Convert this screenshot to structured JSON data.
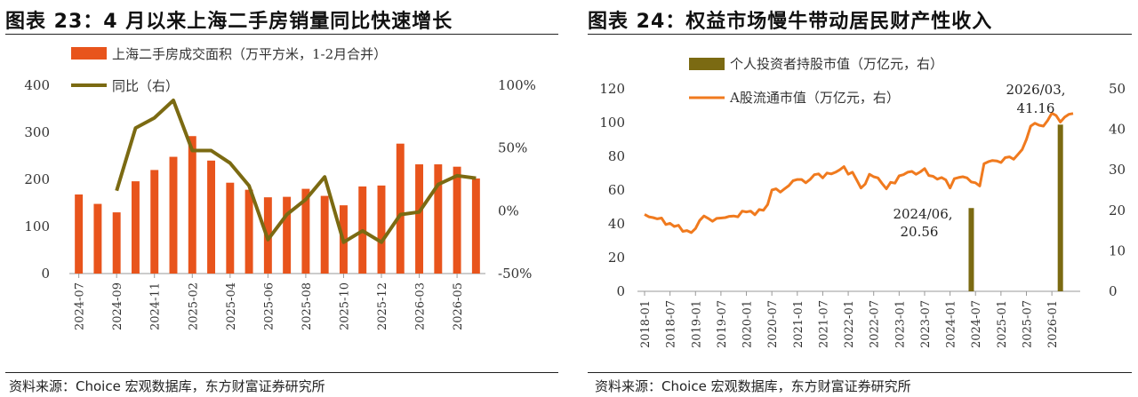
{
  "chart_data": [
    {
      "type": "bar",
      "title": "图表 23：4 月以来上海二手房销量同比快速增长",
      "source": "资料来源：Choice 宏观数据库，东方财富证券研究所",
      "x_tick_labels": [
        "2024-07",
        "2024-09",
        "2024-11",
        "2025-02",
        "2025-04",
        "2025-06",
        "2025-08",
        "2025-10",
        "2025-12",
        "2026-03",
        "2026-05"
      ],
      "categories": [
        "2024-07",
        "2024-08",
        "2024-09",
        "2024-10",
        "2024-11",
        "2024-12",
        "2025-02",
        "2025-03",
        "2025-04",
        "2025-05",
        "2025-06",
        "2025-07",
        "2025-08",
        "2025-09",
        "2025-10",
        "2025-11",
        "2025-12",
        "2026-01",
        "2026-03",
        "2026-04",
        "2026-05",
        "2026-06"
      ],
      "y_left": {
        "ylim": [
          0,
          400
        ],
        "ticks": [
          "0",
          "100",
          "200",
          "300",
          "400"
        ]
      },
      "y_right": {
        "ylim": [
          -50,
          100
        ],
        "ticks": [
          "-50%",
          "0%",
          "50%",
          "100%"
        ]
      },
      "legend_placement": "top-left",
      "series": [
        {
          "name": "上海二手房成交面积（万平方米，1-2月合并）",
          "type": "bar",
          "axis": "left",
          "color": "#e8541c",
          "values": [
            168,
            148,
            130,
            196,
            220,
            248,
            292,
            240,
            193,
            178,
            162,
            163,
            180,
            165,
            145,
            185,
            187,
            276,
            232,
            232,
            227,
            202
          ]
        },
        {
          "name": "同比（右）",
          "type": "line",
          "axis": "right",
          "color": "#7b6a12",
          "values": [
            null,
            null,
            16,
            66,
            74,
            88,
            48,
            48,
            38,
            20,
            -23,
            -3,
            9,
            27,
            -25,
            -16,
            -25,
            -3,
            -1,
            21,
            28,
            26
          ]
        }
      ]
    },
    {
      "type": "bar",
      "title": "图表 24：权益市场慢牛带动居民财产性收入",
      "source": "资料来源：Choice 宏观数据库，东方财富证券研究所",
      "x_tick_labels": [
        "2018-01",
        "2018-07",
        "2019-01",
        "2019-07",
        "2020-01",
        "2020-07",
        "2021-01",
        "2021-07",
        "2022-01",
        "2022-07",
        "2023-01",
        "2023-07",
        "2024-01",
        "2024-07",
        "2025-01",
        "2025-07",
        "2026-01"
      ],
      "y_left": {
        "ylim": [
          0,
          120
        ],
        "ticks": [
          "0",
          "20",
          "40",
          "60",
          "80",
          "100",
          "120"
        ]
      },
      "y_right": {
        "ylim": [
          0,
          50
        ],
        "ticks": [
          "0",
          "10",
          "20",
          "30",
          "40",
          "50"
        ]
      },
      "legend_placement": "top-center",
      "series": [
        {
          "name": "个人投资者持股市值（万亿元，右）",
          "type": "bar",
          "axis": "right",
          "color": "#7b6a12",
          "points": [
            {
              "x": "2024-06",
              "y": 20.56
            },
            {
              "x": "2026-03",
              "y": 41.16
            }
          ]
        },
        {
          "name": "A股流通市值（万亿元，右）",
          "type": "line",
          "axis": "right",
          "color": "#f07a1e",
          "points": [
            {
              "x": "2018-01",
              "y": 19.0
            },
            {
              "x": "2018-02",
              "y": 18.4
            },
            {
              "x": "2018-03",
              "y": 18.2
            },
            {
              "x": "2018-04",
              "y": 17.9
            },
            {
              "x": "2018-05",
              "y": 18.1
            },
            {
              "x": "2018-06",
              "y": 16.5
            },
            {
              "x": "2018-07",
              "y": 16.8
            },
            {
              "x": "2018-08",
              "y": 16.0
            },
            {
              "x": "2018-09",
              "y": 16.3
            },
            {
              "x": "2018-10",
              "y": 14.8
            },
            {
              "x": "2018-11",
              "y": 15.0
            },
            {
              "x": "2018-12",
              "y": 14.5
            },
            {
              "x": "2019-01",
              "y": 15.5
            },
            {
              "x": "2019-02",
              "y": 17.5
            },
            {
              "x": "2019-03",
              "y": 18.6
            },
            {
              "x": "2019-04",
              "y": 18.0
            },
            {
              "x": "2019-05",
              "y": 17.3
            },
            {
              "x": "2019-06",
              "y": 18.0
            },
            {
              "x": "2019-07",
              "y": 18.1
            },
            {
              "x": "2019-08",
              "y": 18.2
            },
            {
              "x": "2019-09",
              "y": 18.5
            },
            {
              "x": "2019-10",
              "y": 18.6
            },
            {
              "x": "2019-11",
              "y": 18.4
            },
            {
              "x": "2019-12",
              "y": 19.8
            },
            {
              "x": "2020-01",
              "y": 19.6
            },
            {
              "x": "2020-02",
              "y": 19.8
            },
            {
              "x": "2020-03",
              "y": 18.9
            },
            {
              "x": "2020-04",
              "y": 20.2
            },
            {
              "x": "2020-05",
              "y": 20.0
            },
            {
              "x": "2020-06",
              "y": 21.4
            },
            {
              "x": "2020-07",
              "y": 25.0
            },
            {
              "x": "2020-08",
              "y": 25.3
            },
            {
              "x": "2020-09",
              "y": 24.5
            },
            {
              "x": "2020-10",
              "y": 25.3
            },
            {
              "x": "2020-11",
              "y": 26.1
            },
            {
              "x": "2020-12",
              "y": 27.3
            },
            {
              "x": "2021-01",
              "y": 27.6
            },
            {
              "x": "2021-02",
              "y": 27.6
            },
            {
              "x": "2021-03",
              "y": 26.8
            },
            {
              "x": "2021-04",
              "y": 27.6
            },
            {
              "x": "2021-05",
              "y": 28.8
            },
            {
              "x": "2021-06",
              "y": 29.0
            },
            {
              "x": "2021-07",
              "y": 28.0
            },
            {
              "x": "2021-08",
              "y": 29.2
            },
            {
              "x": "2021-09",
              "y": 29.0
            },
            {
              "x": "2021-10",
              "y": 29.4
            },
            {
              "x": "2021-11",
              "y": 30.0
            },
            {
              "x": "2021-12",
              "y": 30.8
            },
            {
              "x": "2022-01",
              "y": 28.9
            },
            {
              "x": "2022-02",
              "y": 29.4
            },
            {
              "x": "2022-03",
              "y": 27.5
            },
            {
              "x": "2022-04",
              "y": 25.5
            },
            {
              "x": "2022-05",
              "y": 26.5
            },
            {
              "x": "2022-06",
              "y": 28.9
            },
            {
              "x": "2022-07",
              "y": 28.3
            },
            {
              "x": "2022-08",
              "y": 28.0
            },
            {
              "x": "2022-09",
              "y": 26.6
            },
            {
              "x": "2022-10",
              "y": 25.3
            },
            {
              "x": "2022-11",
              "y": 26.9
            },
            {
              "x": "2022-12",
              "y": 26.7
            },
            {
              "x": "2023-01",
              "y": 28.5
            },
            {
              "x": "2023-02",
              "y": 28.8
            },
            {
              "x": "2023-03",
              "y": 29.4
            },
            {
              "x": "2023-04",
              "y": 29.6
            },
            {
              "x": "2023-05",
              "y": 28.9
            },
            {
              "x": "2023-06",
              "y": 29.5
            },
            {
              "x": "2023-07",
              "y": 30.3
            },
            {
              "x": "2023-08",
              "y": 28.6
            },
            {
              "x": "2023-09",
              "y": 28.4
            },
            {
              "x": "2023-10",
              "y": 27.7
            },
            {
              "x": "2023-11",
              "y": 28.1
            },
            {
              "x": "2023-12",
              "y": 27.5
            },
            {
              "x": "2024-01",
              "y": 25.5
            },
            {
              "x": "2024-02",
              "y": 27.8
            },
            {
              "x": "2024-03",
              "y": 28.1
            },
            {
              "x": "2024-04",
              "y": 28.3
            },
            {
              "x": "2024-05",
              "y": 28.0
            },
            {
              "x": "2024-06",
              "y": 27.0
            },
            {
              "x": "2024-07",
              "y": 26.8
            },
            {
              "x": "2024-08",
              "y": 26.0
            },
            {
              "x": "2024-09",
              "y": 31.5
            },
            {
              "x": "2024-10",
              "y": 32.0
            },
            {
              "x": "2024-11",
              "y": 32.3
            },
            {
              "x": "2024-12",
              "y": 32.2
            },
            {
              "x": "2025-01",
              "y": 31.8
            },
            {
              "x": "2025-02",
              "y": 33.0
            },
            {
              "x": "2025-03",
              "y": 33.2
            },
            {
              "x": "2025-04",
              "y": 32.6
            },
            {
              "x": "2025-05",
              "y": 33.8
            },
            {
              "x": "2025-06",
              "y": 35.0
            },
            {
              "x": "2025-07",
              "y": 37.5
            },
            {
              "x": "2025-08",
              "y": 40.8
            },
            {
              "x": "2025-09",
              "y": 41.5
            },
            {
              "x": "2025-10",
              "y": 41.0
            },
            {
              "x": "2025-11",
              "y": 40.8
            },
            {
              "x": "2025-12",
              "y": 42.2
            },
            {
              "x": "2026-01",
              "y": 44.0
            },
            {
              "x": "2026-02",
              "y": 43.4
            },
            {
              "x": "2026-03",
              "y": 41.8
            },
            {
              "x": "2026-04",
              "y": 43.0
            },
            {
              "x": "2026-05",
              "y": 43.7
            },
            {
              "x": "2026-06",
              "y": 43.9
            }
          ]
        }
      ],
      "annotations": [
        {
          "lines": [
            "2024/06,",
            "20.56"
          ]
        },
        {
          "lines": [
            "2026/03,",
            "41.16"
          ]
        }
      ]
    }
  ]
}
